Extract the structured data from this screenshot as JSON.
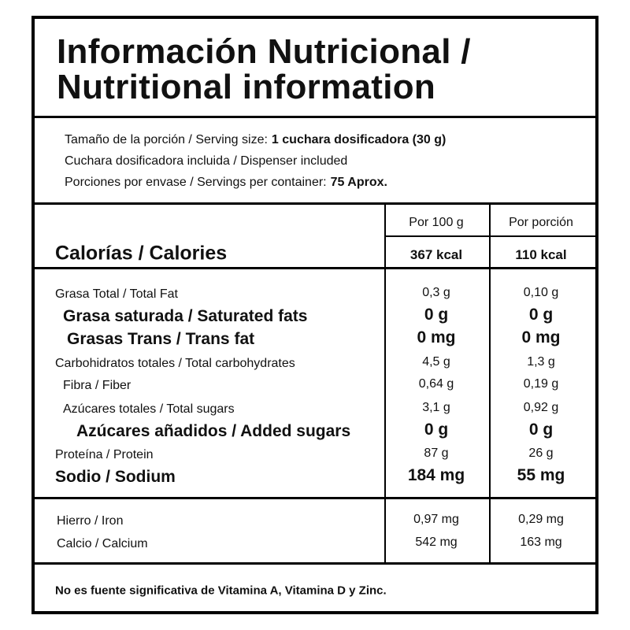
{
  "header": {
    "title": [
      "Información Nutricional /",
      "Nutritional information"
    ]
  },
  "serving": [
    {
      "label": "Tamaño de la porción / Serving size:",
      "value": "1 cuchara dosificadora (30 g)"
    },
    {
      "label": "Cuchara dosificadora incluida / Dispenser included"
    },
    {
      "label": "Porciones por envase / Servings per container:",
      "value": "75 Aprox."
    }
  ],
  "table": {
    "columns": [
      "Por 100 g",
      "Por porción"
    ],
    "calories": [
      "Calorías / Calories",
      "367 kcal",
      "110 kcal"
    ],
    "rows": [
      [
        "Grasa Total / Total Fat",
        "0,3 g",
        "0,10 g"
      ],
      [
        "Grasa saturada / Saturated fats",
        "0 g",
        "0 g"
      ],
      [
        "Grasas Trans / Trans fat",
        "0 mg",
        "0 mg"
      ],
      [
        "Carbohidratos totales / Total carbohydrates",
        "4,5 g",
        "1,3 g"
      ],
      [
        "Fibra / Fiber",
        "0,64 g",
        "0,19 g"
      ],
      [
        "Azúcares totales / Total sugars",
        "3,1 g",
        "0,92 g"
      ],
      [
        "Azúcares añadidos / Added sugars",
        "0 g",
        "0 g"
      ],
      [
        "Proteína / Protein",
        "87 g",
        "26 g"
      ],
      [
        "Sodio / Sodium",
        "184 mg",
        "55 mg"
      ]
    ],
    "minerals": [
      [
        "Hierro / Iron",
        "0,97 mg",
        "0,29 mg"
      ],
      [
        "Calcio / Calcium",
        "542 mg",
        "163 mg"
      ]
    ]
  },
  "footer": "No es fuente significativa de Vitamina A, Vitamina D y Zinc."
}
